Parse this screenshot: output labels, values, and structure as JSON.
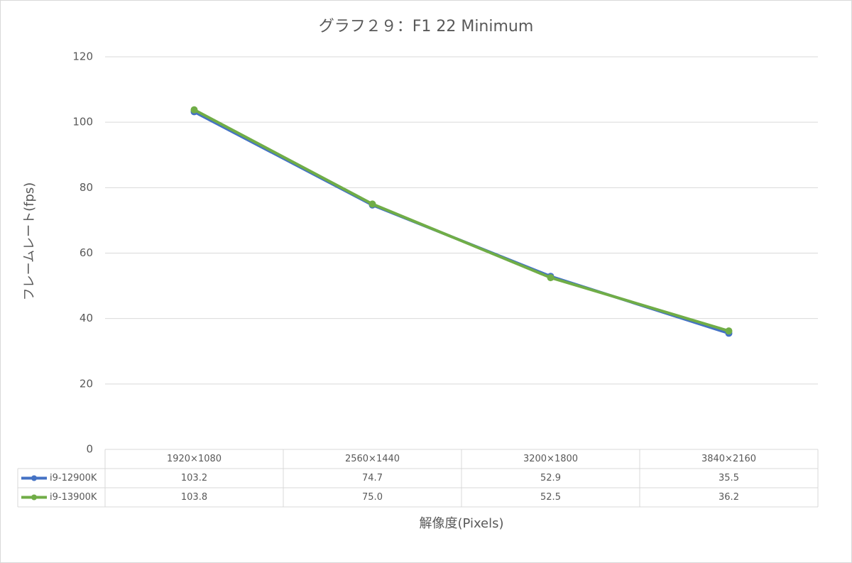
{
  "chart_data": {
    "type": "line",
    "title": "グラフ２９：F1 22 Minimum",
    "y_label": "フレームレート(fps)",
    "x_label": "解像度(Pixels)",
    "categories": [
      "1920×1080",
      "2560×1440",
      "3200×1800",
      "3840×2160"
    ],
    "series": [
      {
        "name": "i9-12900K",
        "color": "#4472c4",
        "values": [
          103.2,
          74.7,
          52.9,
          35.5
        ],
        "value_labels": [
          "103.2",
          "74.7",
          "52.9",
          "35.5"
        ]
      },
      {
        "name": "i9-13900K",
        "color": "#70ad47",
        "values": [
          103.8,
          75,
          52.5,
          36.2
        ],
        "value_labels": [
          "103.8",
          "75.0",
          "52.5",
          "36.2"
        ]
      }
    ],
    "ylim": [
      0,
      120
    ],
    "yticks": [
      0,
      20,
      40,
      60,
      80,
      100,
      120
    ],
    "grid": true,
    "data_table": true
  }
}
